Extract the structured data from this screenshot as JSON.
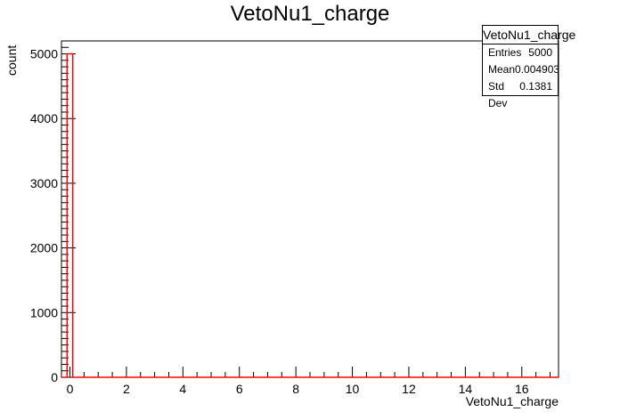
{
  "chart_data": {
    "type": "bar",
    "title": "VetoNu1_charge",
    "xlabel": "VetoNu1_charge",
    "ylabel": "count",
    "xlim": [
      -0.3,
      17.3
    ],
    "ylim": [
      0,
      5200
    ],
    "x_ticks": [
      "0",
      "2",
      "4",
      "6",
      "8",
      "10",
      "12",
      "14",
      "16"
    ],
    "y_ticks": [
      "0",
      "1000",
      "2000",
      "3000",
      "4000",
      "5000"
    ],
    "bins": [
      {
        "x0": -0.1,
        "x1": 0.1,
        "count": 5000
      }
    ],
    "line_color": "#ff0000",
    "stats": {
      "title": "VetoNu1_charge",
      "entries_label": "Entries",
      "entries": "5000",
      "mean_label": "Mean",
      "mean": "0.004903",
      "std_label": "Std Dev",
      "std": "0.1381"
    }
  }
}
